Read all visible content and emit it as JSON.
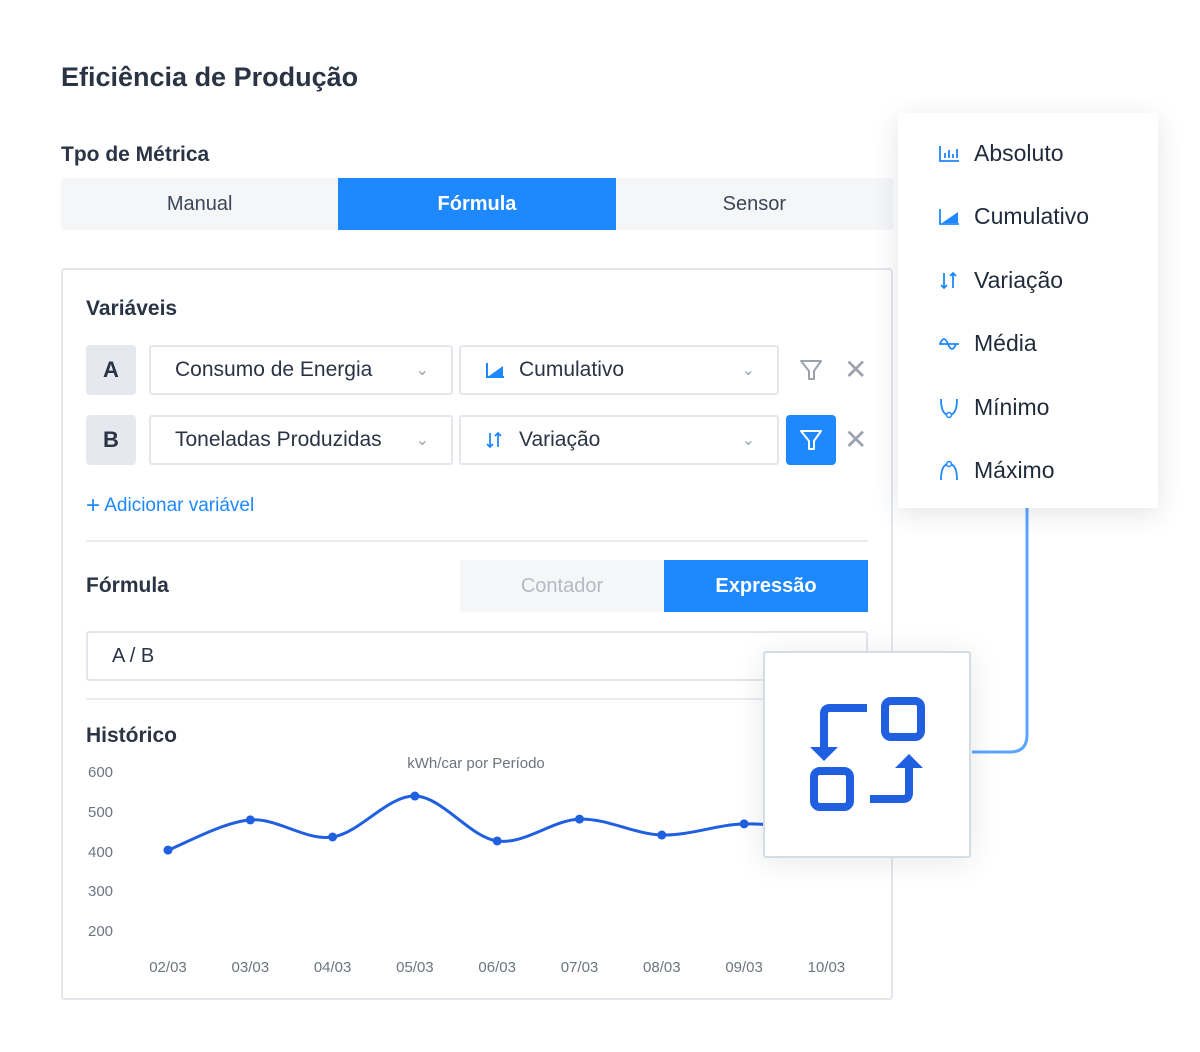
{
  "page": {
    "title": "Eficiência de Produção",
    "metric_type_label": "Tpo de Métrica"
  },
  "metric_tabs": [
    {
      "label": "Manual",
      "active": false
    },
    {
      "label": "Fórmula",
      "active": true
    },
    {
      "label": "Sensor",
      "active": false
    }
  ],
  "variables": {
    "heading": "Variáveis",
    "rows": [
      {
        "letter": "A",
        "source": "Consumo de Energia",
        "aggregation": "Cumulativo",
        "aggregation_icon": "area-chart-icon",
        "filter_active": false
      },
      {
        "letter": "B",
        "source": "Toneladas Produzidas",
        "aggregation": "Variação",
        "aggregation_icon": "arrows-up-down-icon",
        "filter_active": true
      }
    ],
    "add_label": "Adicionar variável"
  },
  "formula": {
    "heading": "Fórmula",
    "modes": [
      {
        "label": "Contador",
        "active": false
      },
      {
        "label": "Expressão",
        "active": true
      }
    ],
    "expression": "A / B"
  },
  "history": {
    "heading": "Histórico"
  },
  "aggregation_menu": {
    "items": [
      {
        "label": "Absoluto",
        "icon": "bar-chart-icon"
      },
      {
        "label": "Cumulativo",
        "icon": "area-chart-icon"
      },
      {
        "label": "Variação",
        "icon": "arrows-up-down-icon"
      },
      {
        "label": "Média",
        "icon": "wave-icon"
      },
      {
        "label": "Mínimo",
        "icon": "minimum-curve-icon"
      },
      {
        "label": "Máximo",
        "icon": "maximum-curve-icon"
      }
    ]
  },
  "colors": {
    "accent": "#1e88ff",
    "line": "#1f5fe0",
    "connector": "#5aa6ff"
  },
  "chart_data": {
    "type": "line",
    "title": "kWh/car por Período",
    "categories": [
      "02/03",
      "03/03",
      "04/03",
      "05/03",
      "06/03",
      "07/03",
      "08/03",
      "09/03",
      "10/03"
    ],
    "values": [
      406,
      482,
      439,
      542,
      429,
      484,
      444,
      472,
      455
    ],
    "yticks": [
      600,
      500,
      400,
      300,
      200
    ],
    "ylim": [
      200,
      600
    ],
    "grid": false,
    "smooth": true
  }
}
